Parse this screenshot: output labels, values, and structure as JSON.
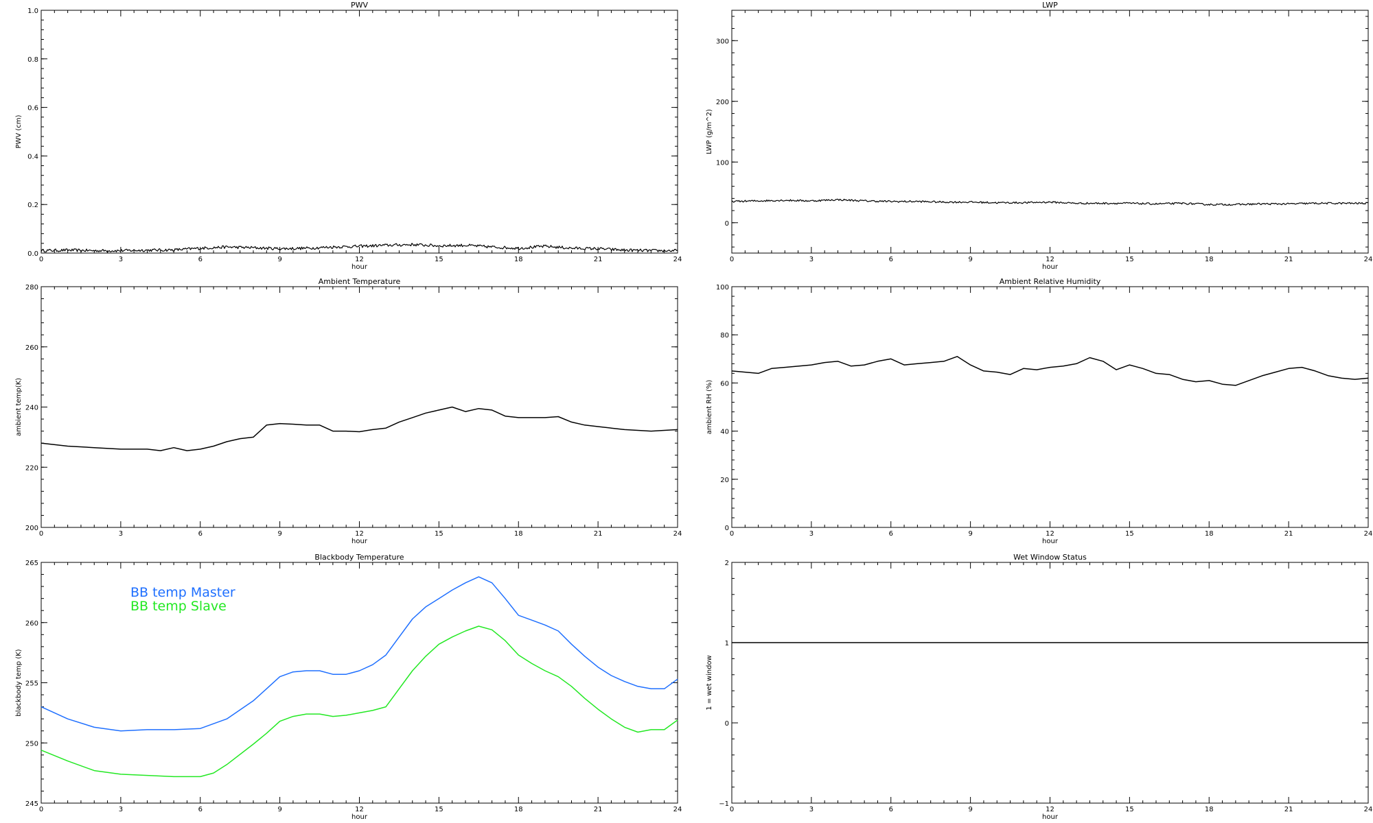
{
  "chart_data": [
    {
      "id": "pwv",
      "type": "line",
      "title": "PWV",
      "xlabel": "hour",
      "ylabel": "PWV (cm)",
      "xlim": [
        0,
        24
      ],
      "ylim": [
        0,
        1.0
      ],
      "xticks": [
        0,
        3,
        6,
        9,
        12,
        15,
        18,
        21,
        24
      ],
      "yticks": [
        0.0,
        0.2,
        0.4,
        0.6,
        0.8,
        1.0
      ],
      "ytick_labels": [
        "0.0",
        "0.2",
        "0.4",
        "0.6",
        "0.8",
        "1.0"
      ],
      "noisy": true,
      "noise_amplitude": 0.006,
      "series": [
        {
          "color": "#000000",
          "x": [
            0,
            1,
            2,
            3,
            4,
            5,
            6,
            7,
            8,
            9,
            10,
            11,
            12,
            13,
            14,
            15,
            16,
            17,
            18,
            19,
            20,
            21,
            22,
            23,
            24
          ],
          "y": [
            0.01,
            0.012,
            0.01,
            0.01,
            0.012,
            0.013,
            0.02,
            0.025,
            0.022,
            0.018,
            0.02,
            0.025,
            0.028,
            0.032,
            0.035,
            0.03,
            0.032,
            0.025,
            0.02,
            0.028,
            0.02,
            0.018,
            0.012,
            0.01,
            0.01
          ]
        }
      ]
    },
    {
      "id": "lwp",
      "type": "line",
      "title": "LWP",
      "xlabel": "hour",
      "ylabel": "LWP (g/m^2)",
      "xlim": [
        0,
        24
      ],
      "ylim": [
        -50,
        350
      ],
      "xticks": [
        0,
        3,
        6,
        9,
        12,
        15,
        18,
        21,
        24
      ],
      "yticks": [
        0,
        100,
        200,
        300
      ],
      "ytick_labels": [
        "0",
        "100",
        "200",
        "300"
      ],
      "noisy": true,
      "noise_amplitude": 1.5,
      "series": [
        {
          "color": "#000000",
          "x": [
            0,
            1,
            2,
            3,
            4,
            5,
            6,
            7,
            8,
            9,
            10,
            11,
            12,
            13,
            14,
            15,
            16,
            17,
            18,
            19,
            20,
            21,
            22,
            23,
            24
          ],
          "y": [
            35,
            36,
            37,
            36,
            38,
            36,
            35,
            35,
            34,
            34,
            33,
            33,
            34,
            32,
            32,
            32,
            31,
            32,
            30,
            30,
            31,
            31,
            32,
            32,
            32
          ]
        }
      ]
    },
    {
      "id": "ambient-temp",
      "type": "line",
      "title": "Ambient Temperature",
      "xlabel": "hour",
      "ylabel": "ambient temp(K)",
      "xlim": [
        0,
        24
      ],
      "ylim": [
        200,
        280
      ],
      "xticks": [
        0,
        3,
        6,
        9,
        12,
        15,
        18,
        21,
        24
      ],
      "yticks": [
        200,
        220,
        240,
        260,
        280
      ],
      "ytick_labels": [
        "200",
        "220",
        "240",
        "260",
        "280"
      ],
      "noisy": false,
      "series": [
        {
          "color": "#000000",
          "x": [
            0,
            1,
            2,
            3,
            4,
            4.5,
            5,
            5.5,
            6,
            6.5,
            7,
            7.5,
            8,
            8.5,
            9,
            9.5,
            10,
            10.5,
            11,
            11.5,
            12,
            12.5,
            13,
            13.5,
            14,
            14.5,
            15,
            15.5,
            16,
            16.5,
            17,
            17.5,
            18,
            18.5,
            19,
            19.5,
            20,
            20.5,
            21,
            21.5,
            22,
            23,
            24
          ],
          "y": [
            228,
            227,
            226.5,
            226,
            226,
            225.5,
            226.5,
            225.5,
            226,
            227,
            228.5,
            229.5,
            230,
            234,
            234.5,
            234.3,
            234,
            234,
            232,
            232,
            231.8,
            232.5,
            233,
            235,
            236.5,
            238,
            239,
            240,
            238.5,
            239.5,
            239,
            237,
            236.5,
            236.5,
            236.5,
            236.8,
            235,
            234,
            233.5,
            233,
            232.5,
            232,
            232.5
          ]
        }
      ]
    },
    {
      "id": "ambient-rh",
      "type": "line",
      "title": "Ambient Relative Humidity",
      "xlabel": "hour",
      "ylabel": "ambient RH (%)",
      "xlim": [
        0,
        24
      ],
      "ylim": [
        0,
        100
      ],
      "xticks": [
        0,
        3,
        6,
        9,
        12,
        15,
        18,
        21,
        24
      ],
      "yticks": [
        0,
        20,
        40,
        60,
        80,
        100
      ],
      "ytick_labels": [
        "0",
        "20",
        "40",
        "60",
        "80",
        "100"
      ],
      "noisy": false,
      "series": [
        {
          "color": "#000000",
          "x": [
            0,
            0.5,
            1,
            1.5,
            2,
            3,
            3.5,
            4,
            4.5,
            5,
            5.5,
            6,
            6.5,
            7,
            7.5,
            8,
            8.5,
            9,
            9.5,
            10,
            10.5,
            11,
            11.5,
            12,
            12.5,
            13,
            13.5,
            14,
            14.5,
            15,
            15.5,
            16,
            16.5,
            17,
            17.5,
            18,
            18.5,
            19,
            19.5,
            20,
            20.5,
            21,
            21.5,
            22,
            22.5,
            23,
            23.5,
            24
          ],
          "y": [
            65,
            64.5,
            64,
            66,
            66.5,
            67.5,
            68.5,
            69,
            67,
            67.5,
            69,
            70,
            67.5,
            68,
            68.5,
            69,
            71,
            67.5,
            65,
            64.5,
            63.5,
            66,
            65.5,
            66.5,
            67,
            68,
            70.5,
            69,
            65.5,
            67.5,
            66,
            64,
            63.5,
            61.5,
            60.5,
            61,
            59.5,
            59,
            61,
            63,
            64.5,
            66,
            66.5,
            65,
            63,
            62,
            61.5,
            62
          ]
        }
      ]
    },
    {
      "id": "blackbody-temp",
      "type": "line",
      "title": "Blackbody Temperature",
      "xlabel": "hour",
      "ylabel": "blackbody temp (K)",
      "xlim": [
        0,
        24
      ],
      "ylim": [
        245,
        265
      ],
      "xticks": [
        0,
        3,
        6,
        9,
        12,
        15,
        18,
        21,
        24
      ],
      "yticks": [
        245,
        250,
        255,
        260,
        265
      ],
      "ytick_labels": [
        "245",
        "250",
        "255",
        "260",
        "265"
      ],
      "noisy": false,
      "legend": [
        {
          "label": "BB temp Master",
          "color": "#1e6fff"
        },
        {
          "label": "BB temp Slave",
          "color": "#22e822"
        }
      ],
      "series": [
        {
          "name": "BB temp Master",
          "color": "#1e6fff",
          "x": [
            0,
            1,
            2,
            3,
            4,
            5,
            6,
            7,
            8,
            8.5,
            9,
            9.5,
            10,
            10.5,
            11,
            11.5,
            12,
            12.5,
            13,
            13.5,
            14,
            14.5,
            15,
            15.5,
            16,
            16.5,
            17,
            17.5,
            18,
            18.5,
            19,
            19.5,
            20,
            20.5,
            21,
            21.5,
            22,
            22.5,
            23,
            23.5,
            24
          ],
          "y": [
            253,
            252,
            251.3,
            251,
            251.1,
            251.1,
            251.2,
            252,
            253.5,
            254.5,
            255.5,
            255.9,
            256,
            256,
            255.7,
            255.7,
            256,
            256.5,
            257.3,
            258.8,
            260.3,
            261.3,
            262,
            262.7,
            263.3,
            263.8,
            263.3,
            262,
            260.6,
            260.2,
            259.8,
            259.3,
            258.2,
            257.2,
            256.3,
            255.6,
            255.1,
            254.7,
            254.5,
            254.5,
            255.3
          ]
        },
        {
          "name": "BB temp Slave",
          "color": "#22e822",
          "x": [
            0,
            1,
            2,
            3,
            4,
            5,
            6,
            6.5,
            7,
            8,
            8.5,
            9,
            9.5,
            10,
            10.5,
            11,
            11.5,
            12,
            12.5,
            13,
            13.5,
            14,
            14.5,
            15,
            15.5,
            16,
            16.5,
            17,
            17.5,
            18,
            18.5,
            19,
            19.5,
            20,
            20.5,
            21,
            21.5,
            22,
            22.5,
            23,
            23.5,
            24
          ],
          "y": [
            249.4,
            248.5,
            247.7,
            247.4,
            247.3,
            247.2,
            247.2,
            247.5,
            248.2,
            249.9,
            250.8,
            251.8,
            252.2,
            252.4,
            252.4,
            252.2,
            252.3,
            252.5,
            252.7,
            253,
            254.5,
            256,
            257.2,
            258.2,
            258.8,
            259.3,
            259.7,
            259.4,
            258.5,
            257.3,
            256.6,
            256,
            255.5,
            254.7,
            253.7,
            252.8,
            252,
            251.3,
            250.9,
            251.1,
            251.1,
            251.9
          ]
        }
      ]
    },
    {
      "id": "wet-window",
      "type": "line",
      "title": "Wet Window Status",
      "xlabel": "hour",
      "ylabel": "1 = wet window",
      "xlim": [
        0,
        24
      ],
      "ylim": [
        -1,
        2
      ],
      "xticks": [
        0,
        3,
        6,
        9,
        12,
        15,
        18,
        21,
        24
      ],
      "yticks": [
        -1,
        0,
        1,
        2
      ],
      "ytick_labels": [
        "−1",
        "0",
        "1",
        "2"
      ],
      "noisy": false,
      "series": [
        {
          "color": "#000000",
          "x": [
            0,
            24
          ],
          "y": [
            1,
            1
          ]
        }
      ]
    }
  ]
}
